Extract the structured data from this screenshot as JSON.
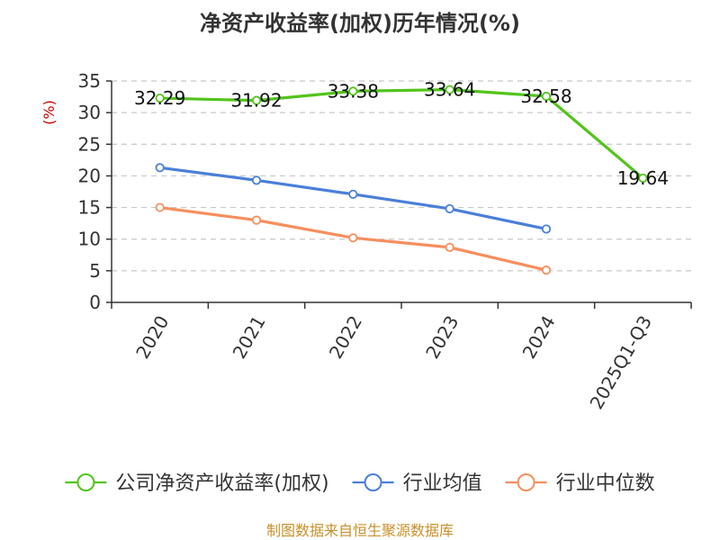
{
  "chart_data": {
    "type": "line",
    "title": "净资产收益率(加权)历年情况(%)",
    "ylabel": "(%)",
    "xlabel": "",
    "categories": [
      "2020",
      "2021",
      "2022",
      "2023",
      "2024",
      "2025Q1-Q3"
    ],
    "y_ticks": [
      0,
      5,
      10,
      15,
      20,
      25,
      30,
      35
    ],
    "ylim": [
      0,
      35
    ],
    "grid": true,
    "legend_position": "bottom",
    "series": [
      {
        "name": "公司净资产收益率(加权)",
        "color": "#52c41a",
        "values": [
          32.29,
          31.92,
          33.38,
          33.64,
          32.58,
          19.64
        ],
        "labels": [
          "32.29",
          "31.92",
          "33.38",
          "33.64",
          "32.58",
          "19.64"
        ],
        "show_labels": true
      },
      {
        "name": "行业均值",
        "color": "#4a7fd9",
        "values": [
          21.3,
          19.3,
          17.1,
          14.8,
          11.6,
          null
        ],
        "show_labels": false
      },
      {
        "name": "行业中位数",
        "color": "#f78e5e",
        "values": [
          15.0,
          13.0,
          10.2,
          8.7,
          5.1,
          null
        ],
        "show_labels": false
      }
    ]
  },
  "source": "制图数据来自恒生聚源数据库"
}
